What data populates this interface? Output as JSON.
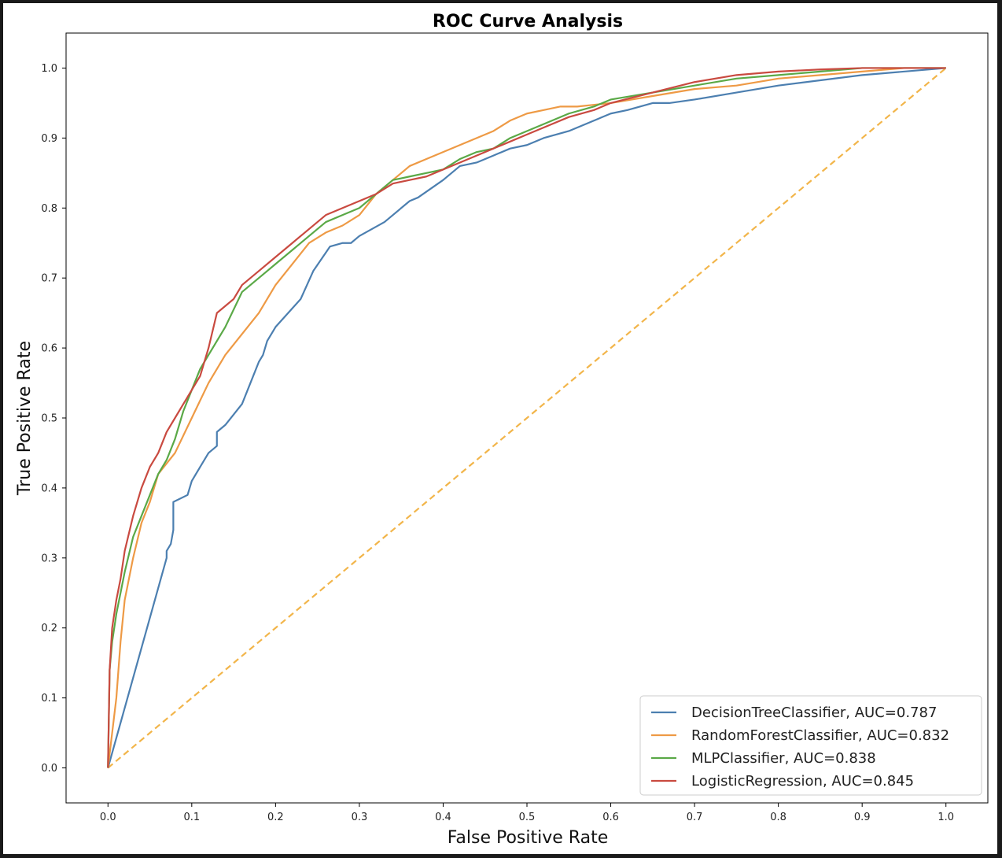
{
  "colors": {
    "series": [
      "#4c7fb0",
      "#ee9a45",
      "#5aa947",
      "#c94a40"
    ],
    "diagonal": "#f2b54a"
  },
  "chart_data": {
    "type": "line",
    "title": "ROC Curve Analysis",
    "xlabel": "False Positive Rate",
    "ylabel": "True Positive Rate",
    "xlim": [
      -0.05,
      1.05
    ],
    "ylim": [
      -0.05,
      1.05
    ],
    "xticks": [
      0.0,
      0.1,
      0.2,
      0.3,
      0.4,
      0.5,
      0.6,
      0.7,
      0.8,
      0.9,
      1.0
    ],
    "xtick_labels": [
      "0.0",
      "0.1",
      "0.2",
      "0.3",
      "0.4",
      "0.5",
      "0.6",
      "0.7",
      "0.8",
      "0.9",
      "1.0"
    ],
    "yticks": [
      0.0,
      0.1,
      0.2,
      0.3,
      0.4,
      0.5,
      0.6,
      0.7,
      0.8,
      0.9,
      1.0
    ],
    "ytick_labels": [
      "0.0",
      "0.1",
      "0.2",
      "0.3",
      "0.4",
      "0.5",
      "0.6",
      "0.7",
      "0.8",
      "0.9",
      "1.0"
    ],
    "grid": false,
    "legend_position": "bottom-right",
    "diagonal": {
      "x": [
        0,
        1
      ],
      "y": [
        0,
        1
      ],
      "style": "dashed"
    },
    "series": [
      {
        "name": "DecisionTreeClassifier",
        "label": "DecisionTreeClassifier, AUC=0.787",
        "auc": 0.787,
        "x": [
          0,
          0.07,
          0.07,
          0.075,
          0.078,
          0.078,
          0.095,
          0.1,
          0.11,
          0.12,
          0.13,
          0.13,
          0.14,
          0.16,
          0.17,
          0.18,
          0.185,
          0.19,
          0.195,
          0.2,
          0.23,
          0.245,
          0.265,
          0.28,
          0.29,
          0.3,
          0.33,
          0.34,
          0.36,
          0.37,
          0.4,
          0.42,
          0.44,
          0.46,
          0.48,
          0.5,
          0.52,
          0.55,
          0.57,
          0.6,
          0.62,
          0.65,
          0.67,
          0.7,
          0.75,
          0.8,
          0.9,
          1.0
        ],
        "y": [
          0,
          0.3,
          0.31,
          0.32,
          0.34,
          0.38,
          0.39,
          0.41,
          0.43,
          0.45,
          0.46,
          0.48,
          0.49,
          0.52,
          0.55,
          0.58,
          0.59,
          0.61,
          0.62,
          0.63,
          0.67,
          0.71,
          0.745,
          0.75,
          0.75,
          0.76,
          0.78,
          0.79,
          0.81,
          0.815,
          0.84,
          0.86,
          0.865,
          0.875,
          0.885,
          0.89,
          0.9,
          0.91,
          0.92,
          0.935,
          0.94,
          0.95,
          0.95,
          0.955,
          0.965,
          0.975,
          0.99,
          1.0
        ]
      },
      {
        "name": "RandomForestClassifier",
        "label": "RandomForestClassifier, AUC=0.832",
        "auc": 0.832,
        "x": [
          0,
          0.01,
          0.015,
          0.02,
          0.03,
          0.04,
          0.05,
          0.06,
          0.08,
          0.1,
          0.12,
          0.14,
          0.16,
          0.18,
          0.2,
          0.22,
          0.24,
          0.26,
          0.28,
          0.3,
          0.32,
          0.34,
          0.36,
          0.38,
          0.4,
          0.42,
          0.44,
          0.46,
          0.48,
          0.5,
          0.52,
          0.54,
          0.56,
          0.6,
          0.65,
          0.7,
          0.75,
          0.8,
          0.85,
          0.9,
          0.95,
          1.0
        ],
        "y": [
          0,
          0.1,
          0.18,
          0.24,
          0.3,
          0.35,
          0.38,
          0.42,
          0.45,
          0.5,
          0.55,
          0.59,
          0.62,
          0.65,
          0.69,
          0.72,
          0.75,
          0.765,
          0.775,
          0.79,
          0.82,
          0.84,
          0.86,
          0.87,
          0.88,
          0.89,
          0.9,
          0.91,
          0.925,
          0.935,
          0.94,
          0.945,
          0.945,
          0.95,
          0.96,
          0.97,
          0.975,
          0.985,
          0.99,
          0.995,
          1.0,
          1.0
        ]
      },
      {
        "name": "MLPClassifier",
        "label": "MLPClassifier, AUC=0.838",
        "auc": 0.838,
        "x": [
          0,
          0.002,
          0.005,
          0.01,
          0.02,
          0.03,
          0.04,
          0.05,
          0.06,
          0.07,
          0.08,
          0.09,
          0.1,
          0.11,
          0.12,
          0.14,
          0.16,
          0.18,
          0.2,
          0.22,
          0.24,
          0.26,
          0.28,
          0.3,
          0.32,
          0.34,
          0.36,
          0.38,
          0.4,
          0.42,
          0.44,
          0.46,
          0.48,
          0.5,
          0.52,
          0.55,
          0.58,
          0.6,
          0.65,
          0.7,
          0.75,
          0.8,
          0.85,
          0.9,
          0.95,
          1.0
        ],
        "y": [
          0,
          0.14,
          0.18,
          0.22,
          0.28,
          0.33,
          0.36,
          0.39,
          0.42,
          0.44,
          0.47,
          0.51,
          0.54,
          0.57,
          0.59,
          0.63,
          0.68,
          0.7,
          0.72,
          0.74,
          0.76,
          0.78,
          0.79,
          0.8,
          0.82,
          0.84,
          0.845,
          0.85,
          0.855,
          0.87,
          0.88,
          0.885,
          0.9,
          0.91,
          0.92,
          0.935,
          0.945,
          0.955,
          0.965,
          0.975,
          0.985,
          0.99,
          0.995,
          1.0,
          1.0,
          1.0
        ]
      },
      {
        "name": "LogisticRegression",
        "label": "LogisticRegression, AUC=0.845",
        "auc": 0.845,
        "x": [
          0,
          0.002,
          0.005,
          0.01,
          0.015,
          0.02,
          0.03,
          0.04,
          0.05,
          0.06,
          0.07,
          0.08,
          0.09,
          0.1,
          0.11,
          0.12,
          0.13,
          0.14,
          0.15,
          0.16,
          0.18,
          0.2,
          0.22,
          0.24,
          0.26,
          0.28,
          0.3,
          0.32,
          0.34,
          0.36,
          0.38,
          0.4,
          0.42,
          0.44,
          0.46,
          0.48,
          0.5,
          0.52,
          0.55,
          0.58,
          0.6,
          0.65,
          0.7,
          0.75,
          0.8,
          0.85,
          0.9,
          0.95,
          1.0
        ],
        "y": [
          0,
          0.14,
          0.2,
          0.24,
          0.27,
          0.31,
          0.36,
          0.4,
          0.43,
          0.45,
          0.48,
          0.5,
          0.52,
          0.54,
          0.56,
          0.6,
          0.65,
          0.66,
          0.67,
          0.69,
          0.71,
          0.73,
          0.75,
          0.77,
          0.79,
          0.8,
          0.81,
          0.82,
          0.835,
          0.84,
          0.845,
          0.855,
          0.865,
          0.875,
          0.885,
          0.895,
          0.905,
          0.915,
          0.93,
          0.94,
          0.95,
          0.965,
          0.98,
          0.99,
          0.995,
          0.998,
          1.0,
          1.0,
          1.0
        ]
      }
    ]
  }
}
